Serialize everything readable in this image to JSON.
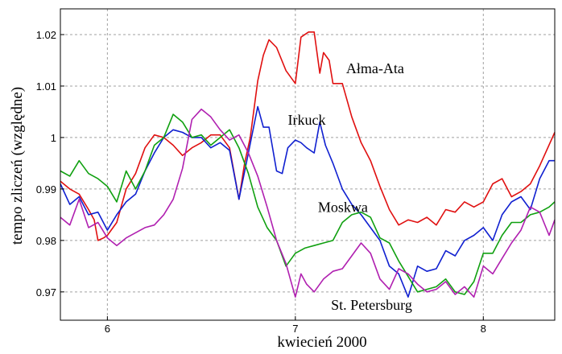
{
  "chart_data": {
    "type": "line",
    "title": "",
    "xlabel": "kwiecień 2000",
    "ylabel": "tempo zliczeń (względne)",
    "xlim": [
      5.75,
      8.38
    ],
    "ylim": [
      0.9645,
      1.025
    ],
    "xticks": [
      6,
      7,
      8
    ],
    "xtick_labels": [
      "6",
      "7",
      "8"
    ],
    "yticks": [
      0.97,
      0.98,
      0.99,
      1.0,
      1.01,
      1.02
    ],
    "ytick_labels": [
      "0.97",
      "0.98",
      "0.99",
      "1",
      "1.01",
      "1.02"
    ],
    "grid": true,
    "legend": "inline labels",
    "series": [
      {
        "name": "Ałma-Ata",
        "color": "#e01010",
        "x": [
          5.75,
          5.8,
          5.85,
          5.9,
          5.93,
          5.95,
          5.98,
          6.0,
          6.05,
          6.1,
          6.15,
          6.2,
          6.25,
          6.3,
          6.35,
          6.4,
          6.45,
          6.5,
          6.55,
          6.6,
          6.65,
          6.7,
          6.73,
          6.76,
          6.8,
          6.83,
          6.86,
          6.9,
          6.95,
          7.0,
          7.03,
          7.07,
          7.1,
          7.13,
          7.15,
          7.18,
          7.2,
          7.25,
          7.3,
          7.35,
          7.4,
          7.45,
          7.5,
          7.55,
          7.6,
          7.65,
          7.7,
          7.75,
          7.8,
          7.85,
          7.9,
          7.95,
          8.0,
          8.05,
          8.1,
          8.15,
          8.2,
          8.25,
          8.3,
          8.38
        ],
        "y": [
          0.9915,
          0.99,
          0.989,
          0.986,
          0.984,
          0.98,
          0.9805,
          0.981,
          0.9835,
          0.99,
          0.993,
          0.998,
          1.0005,
          1.0,
          0.9985,
          0.9965,
          0.998,
          0.999,
          1.0005,
          1.0005,
          0.998,
          0.988,
          0.995,
          1.0,
          1.011,
          1.016,
          1.019,
          1.0175,
          1.013,
          1.0105,
          1.0195,
          1.0205,
          1.0205,
          1.0125,
          1.0165,
          1.015,
          1.0105,
          1.0105,
          1.004,
          0.999,
          0.9955,
          0.9905,
          0.986,
          0.983,
          0.984,
          0.9835,
          0.9845,
          0.983,
          0.986,
          0.9855,
          0.9875,
          0.9865,
          0.9875,
          0.991,
          0.992,
          0.9885,
          0.9895,
          0.991,
          0.9945,
          1.001
        ]
      },
      {
        "name": "Irkuck",
        "color": "#1020d0",
        "x": [
          5.75,
          5.8,
          5.85,
          5.9,
          5.95,
          6.0,
          6.05,
          6.1,
          6.15,
          6.2,
          6.25,
          6.3,
          6.35,
          6.4,
          6.45,
          6.5,
          6.55,
          6.6,
          6.65,
          6.7,
          6.75,
          6.8,
          6.83,
          6.86,
          6.9,
          6.93,
          6.96,
          7.0,
          7.03,
          7.06,
          7.1,
          7.13,
          7.16,
          7.2,
          7.25,
          7.3,
          7.35,
          7.4,
          7.45,
          7.5,
          7.55,
          7.6,
          7.65,
          7.7,
          7.75,
          7.8,
          7.85,
          7.9,
          7.95,
          8.0,
          8.05,
          8.1,
          8.15,
          8.2,
          8.25,
          8.3,
          8.35,
          8.38
        ],
        "y": [
          0.991,
          0.987,
          0.9885,
          0.985,
          0.9855,
          0.982,
          0.985,
          0.9875,
          0.989,
          0.9935,
          0.997,
          1.0,
          1.0015,
          1.001,
          1.0,
          1.0,
          0.998,
          0.999,
          0.9975,
          0.988,
          0.997,
          1.006,
          1.002,
          1.002,
          0.9935,
          0.993,
          0.998,
          0.9995,
          0.999,
          0.998,
          0.997,
          1.003,
          0.9985,
          0.995,
          0.99,
          0.987,
          0.985,
          0.9825,
          0.98,
          0.975,
          0.9735,
          0.969,
          0.975,
          0.974,
          0.9745,
          0.978,
          0.977,
          0.98,
          0.981,
          0.9825,
          0.98,
          0.985,
          0.9875,
          0.9885,
          0.986,
          0.992,
          0.9955,
          0.9955
        ]
      },
      {
        "name": "Moskwa",
        "color": "#10a010",
        "x": [
          5.75,
          5.8,
          5.85,
          5.9,
          5.95,
          6.0,
          6.05,
          6.1,
          6.15,
          6.2,
          6.25,
          6.3,
          6.35,
          6.4,
          6.45,
          6.5,
          6.55,
          6.6,
          6.65,
          6.7,
          6.75,
          6.8,
          6.85,
          6.9,
          6.95,
          7.0,
          7.05,
          7.1,
          7.15,
          7.2,
          7.25,
          7.3,
          7.35,
          7.4,
          7.45,
          7.5,
          7.55,
          7.6,
          7.65,
          7.7,
          7.75,
          7.8,
          7.85,
          7.9,
          7.95,
          8.0,
          8.05,
          8.1,
          8.15,
          8.2,
          8.25,
          8.3,
          8.35,
          8.38
        ],
        "y": [
          0.9935,
          0.9925,
          0.9955,
          0.993,
          0.992,
          0.9905,
          0.9875,
          0.9935,
          0.99,
          0.9935,
          0.9985,
          1.0,
          1.0045,
          1.003,
          1.0,
          1.0005,
          0.9985,
          1.0,
          1.0015,
          0.998,
          0.993,
          0.9865,
          0.9825,
          0.98,
          0.975,
          0.9775,
          0.9785,
          0.979,
          0.9795,
          0.98,
          0.9835,
          0.985,
          0.9855,
          0.9845,
          0.9805,
          0.9795,
          0.976,
          0.973,
          0.97,
          0.9705,
          0.971,
          0.9725,
          0.97,
          0.9695,
          0.972,
          0.9775,
          0.9775,
          0.981,
          0.9835,
          0.9835,
          0.985,
          0.9855,
          0.9865,
          0.9875
        ]
      },
      {
        "name": "St. Petersburg",
        "color": "#b020b0",
        "x": [
          5.75,
          5.8,
          5.85,
          5.9,
          5.95,
          6.0,
          6.05,
          6.1,
          6.15,
          6.2,
          6.25,
          6.3,
          6.35,
          6.4,
          6.45,
          6.5,
          6.55,
          6.6,
          6.65,
          6.7,
          6.75,
          6.8,
          6.85,
          6.9,
          6.95,
          7.0,
          7.03,
          7.06,
          7.1,
          7.15,
          7.2,
          7.25,
          7.3,
          7.35,
          7.4,
          7.45,
          7.5,
          7.55,
          7.6,
          7.65,
          7.7,
          7.75,
          7.8,
          7.85,
          7.9,
          7.95,
          8.0,
          8.05,
          8.1,
          8.15,
          8.2,
          8.25,
          8.3,
          8.35,
          8.38
        ],
        "y": [
          0.9845,
          0.983,
          0.988,
          0.9825,
          0.9835,
          0.9805,
          0.979,
          0.9805,
          0.9815,
          0.9825,
          0.983,
          0.985,
          0.988,
          0.994,
          1.0035,
          1.0055,
          1.004,
          1.0015,
          0.9995,
          1.0005,
          0.997,
          0.9925,
          0.9865,
          0.98,
          0.9755,
          0.969,
          0.9735,
          0.9715,
          0.97,
          0.9725,
          0.974,
          0.9745,
          0.977,
          0.9795,
          0.9775,
          0.9725,
          0.9705,
          0.9745,
          0.9735,
          0.9715,
          0.97,
          0.9705,
          0.972,
          0.9695,
          0.971,
          0.969,
          0.975,
          0.9735,
          0.9765,
          0.9795,
          0.982,
          0.9865,
          0.9855,
          0.981,
          0.984
        ]
      }
    ],
    "annotations": [
      {
        "text": "Ałma-Ata",
        "x": 7.27,
        "y": 1.0125
      },
      {
        "text": "Irkuck",
        "x": 6.96,
        "y": 1.0025
      },
      {
        "text": "Moskwa",
        "x": 7.12,
        "y": 0.9855
      },
      {
        "text": "St. Petersburg",
        "x": 7.19,
        "y": 0.9665
      }
    ]
  }
}
